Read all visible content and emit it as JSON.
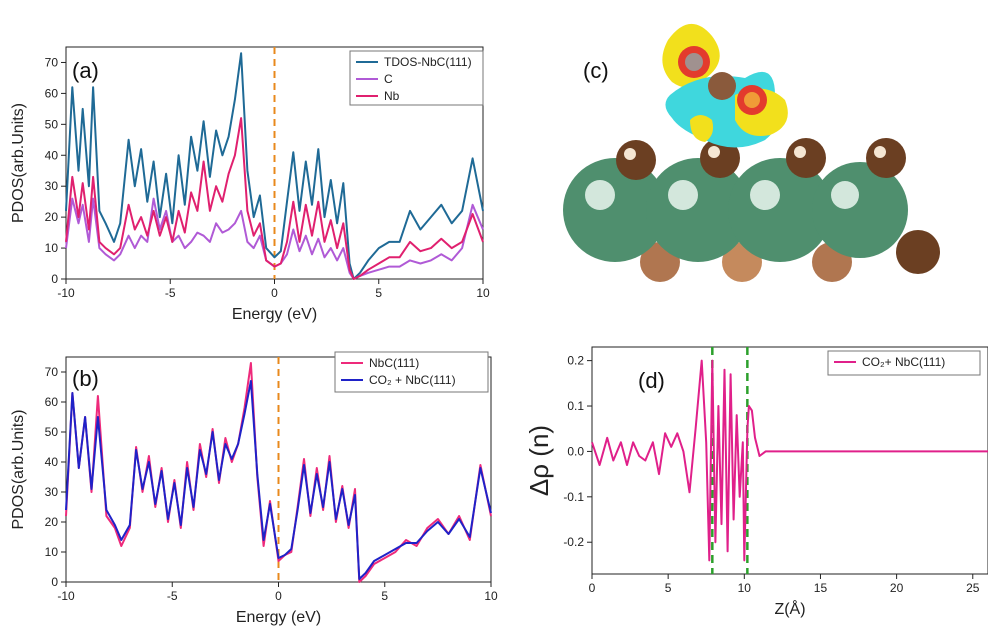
{
  "chart_data": [
    {
      "panel": "(a)",
      "type": "line",
      "xlabel": "Energy (eV)",
      "ylabel": "PDOS(arb.Units)",
      "xlim": [
        -10,
        10
      ],
      "ylim": [
        0,
        75
      ],
      "xticks": [
        -10,
        -5,
        0,
        5,
        10
      ],
      "yticks": [
        0,
        10,
        20,
        30,
        40,
        50,
        60,
        70
      ],
      "fermi_line": {
        "x": 0,
        "color": "#e8891c"
      },
      "legend": "top-right",
      "series": [
        {
          "name": "TDOS-NbC(111)",
          "color": "#1f6a96",
          "x": [
            -10,
            -9.7,
            -9.4,
            -9.2,
            -8.9,
            -8.7,
            -8.4,
            -8.1,
            -7.7,
            -7.4,
            -7.0,
            -6.7,
            -6.4,
            -6.1,
            -5.8,
            -5.5,
            -5.2,
            -4.9,
            -4.6,
            -4.3,
            -4.0,
            -3.7,
            -3.4,
            -3.1,
            -2.8,
            -2.5,
            -2.2,
            -1.9,
            -1.6,
            -1.3,
            -1.0,
            -0.7,
            -0.4,
            0,
            0.3,
            0.6,
            0.9,
            1.2,
            1.5,
            1.8,
            2.1,
            2.4,
            2.7,
            3.0,
            3.3,
            3.6,
            3.8,
            4.1,
            4.5,
            5.0,
            5.5,
            6.0,
            6.5,
            7.0,
            7.5,
            8.0,
            8.5,
            9.0,
            9.5,
            10
          ],
          "y": [
            22,
            62,
            35,
            55,
            30,
            62,
            22,
            18,
            12,
            18,
            45,
            30,
            42,
            25,
            38,
            20,
            34,
            18,
            40,
            24,
            46,
            35,
            51,
            33,
            48,
            40,
            46,
            58,
            73,
            35,
            20,
            27,
            10,
            7,
            9,
            25,
            41,
            22,
            38,
            24,
            42,
            20,
            32,
            18,
            31,
            5,
            0,
            2,
            6,
            10,
            12,
            12,
            22,
            16,
            20,
            24,
            18,
            22,
            39,
            22
          ]
        },
        {
          "name": "C",
          "color": "#b05ad6",
          "x": [
            -10,
            -9.7,
            -9.4,
            -9.2,
            -8.9,
            -8.7,
            -8.4,
            -8.1,
            -7.7,
            -7.4,
            -7.0,
            -6.7,
            -6.4,
            -6.1,
            -5.8,
            -5.5,
            -5.2,
            -4.9,
            -4.6,
            -4.3,
            -4.0,
            -3.7,
            -3.4,
            -3.1,
            -2.8,
            -2.5,
            -2.2,
            -1.9,
            -1.6,
            -1.3,
            -1.0,
            -0.7,
            -0.4,
            0,
            0.3,
            0.6,
            0.9,
            1.2,
            1.5,
            1.8,
            2.1,
            2.4,
            2.7,
            3.0,
            3.3,
            3.6,
            3.8,
            4.1,
            4.5,
            5.0,
            5.5,
            6.0,
            6.5,
            7.0,
            7.5,
            8.0,
            8.5,
            9.0,
            9.5,
            10
          ],
          "y": [
            10,
            26,
            18,
            24,
            12,
            26,
            10,
            8,
            6,
            8,
            14,
            10,
            14,
            12,
            26,
            16,
            22,
            12,
            14,
            10,
            12,
            15,
            14,
            12,
            18,
            15,
            16,
            18,
            22,
            12,
            10,
            14,
            6,
            4,
            5,
            8,
            16,
            9,
            14,
            8,
            13,
            7,
            10,
            6,
            10,
            2,
            0,
            1,
            2,
            3,
            4,
            4,
            6,
            5,
            6,
            8,
            6,
            10,
            24,
            16
          ]
        },
        {
          "name": "Nb",
          "color": "#e0206f",
          "x": [
            -10,
            -9.7,
            -9.4,
            -9.2,
            -8.9,
            -8.7,
            -8.4,
            -8.1,
            -7.7,
            -7.4,
            -7.0,
            -6.7,
            -6.4,
            -6.1,
            -5.8,
            -5.5,
            -5.2,
            -4.9,
            -4.6,
            -4.3,
            -4.0,
            -3.7,
            -3.4,
            -3.1,
            -2.8,
            -2.5,
            -2.2,
            -1.9,
            -1.6,
            -1.3,
            -1.0,
            -0.7,
            -0.4,
            0,
            0.3,
            0.6,
            0.9,
            1.2,
            1.5,
            1.8,
            2.1,
            2.4,
            2.7,
            3.0,
            3.3,
            3.6,
            3.8,
            4.1,
            4.5,
            5.0,
            5.5,
            6.0,
            6.5,
            7.0,
            7.5,
            8.0,
            8.5,
            9.0,
            9.5,
            10
          ],
          "y": [
            12,
            33,
            20,
            31,
            16,
            33,
            12,
            10,
            8,
            10,
            24,
            16,
            20,
            14,
            22,
            14,
            20,
            12,
            22,
            15,
            28,
            22,
            38,
            22,
            30,
            25,
            34,
            40,
            52,
            22,
            14,
            18,
            6,
            4,
            5,
            12,
            25,
            12,
            24,
            14,
            25,
            12,
            19,
            10,
            18,
            3,
            0,
            1,
            3,
            5,
            7,
            7,
            12,
            9,
            10,
            13,
            10,
            12,
            21,
            12
          ]
        }
      ]
    },
    {
      "panel": "(b)",
      "type": "line",
      "xlabel": "Energy (eV)",
      "ylabel": "PDOS(arb.Units)",
      "xlim": [
        -10,
        10
      ],
      "ylim": [
        0,
        75
      ],
      "xticks": [
        -10,
        -5,
        0,
        5,
        10
      ],
      "yticks": [
        0,
        10,
        20,
        30,
        40,
        50,
        60,
        70
      ],
      "fermi_line": {
        "x": 0,
        "color": "#e8891c"
      },
      "legend": "top-right",
      "series": [
        {
          "name": "NbC(111)",
          "color": "#ee2a7b",
          "x": [
            -10,
            -9.7,
            -9.4,
            -9.1,
            -8.8,
            -8.5,
            -8.1,
            -7.7,
            -7.4,
            -7.0,
            -6.7,
            -6.4,
            -6.1,
            -5.8,
            -5.5,
            -5.2,
            -4.9,
            -4.6,
            -4.3,
            -4.0,
            -3.7,
            -3.4,
            -3.1,
            -2.8,
            -2.5,
            -2.2,
            -1.9,
            -1.6,
            -1.3,
            -1.0,
            -0.7,
            -0.4,
            0,
            0.3,
            0.6,
            0.9,
            1.2,
            1.5,
            1.8,
            2.1,
            2.4,
            2.7,
            3.0,
            3.3,
            3.6,
            3.8,
            4.1,
            4.5,
            5.0,
            5.5,
            6.0,
            6.5,
            7.0,
            7.5,
            8.0,
            8.5,
            9.0,
            9.5,
            10
          ],
          "y": [
            22,
            63,
            38,
            55,
            30,
            62,
            22,
            18,
            12,
            18,
            45,
            30,
            42,
            25,
            38,
            20,
            34,
            18,
            40,
            24,
            46,
            35,
            51,
            33,
            48,
            40,
            46,
            58,
            73,
            35,
            12,
            27,
            7,
            9,
            10,
            25,
            41,
            22,
            38,
            24,
            42,
            20,
            32,
            18,
            31,
            0,
            2,
            6,
            8,
            10,
            14,
            12,
            18,
            21,
            16,
            22,
            14,
            39,
            22
          ]
        },
        {
          "name": "CO₂ + NbC(111)",
          "color": "#1f22c8",
          "x": [
            -10,
            -9.7,
            -9.4,
            -9.1,
            -8.8,
            -8.5,
            -8.1,
            -7.7,
            -7.4,
            -7.0,
            -6.7,
            -6.4,
            -6.1,
            -5.8,
            -5.5,
            -5.2,
            -4.9,
            -4.6,
            -4.3,
            -4.0,
            -3.7,
            -3.4,
            -3.1,
            -2.8,
            -2.5,
            -2.2,
            -1.9,
            -1.6,
            -1.3,
            -1.0,
            -0.7,
            -0.4,
            0,
            0.3,
            0.6,
            0.9,
            1.2,
            1.5,
            1.8,
            2.1,
            2.4,
            2.7,
            3.0,
            3.3,
            3.6,
            3.8,
            4.1,
            4.5,
            5.0,
            5.5,
            6.0,
            6.5,
            7.0,
            7.5,
            8.0,
            8.5,
            9.0,
            9.5,
            10
          ],
          "y": [
            24,
            63,
            38,
            55,
            31,
            55,
            24,
            19,
            14,
            19,
            44,
            31,
            40,
            26,
            37,
            21,
            33,
            19,
            38,
            25,
            44,
            36,
            50,
            34,
            46,
            41,
            46,
            56,
            67,
            36,
            14,
            26,
            8,
            9,
            11,
            24,
            39,
            23,
            36,
            25,
            40,
            21,
            31,
            19,
            29,
            1,
            3,
            7,
            9,
            11,
            13,
            13,
            17,
            20,
            16,
            21,
            15,
            38,
            23
          ]
        }
      ]
    },
    {
      "panel": "(d)",
      "type": "line",
      "xlabel": "Z(Å)",
      "ylabel": "Δρ (n)",
      "xlim": [
        0,
        26
      ],
      "ylim": [
        -0.27,
        0.23
      ],
      "xticks": [
        0,
        5,
        10,
        15,
        20,
        25
      ],
      "yticks": [
        -0.2,
        -0.1,
        0.0,
        0.1,
        0.2
      ],
      "vlines": [
        {
          "x": 7.9,
          "color": "#2ca02c"
        },
        {
          "x": 10.2,
          "color": "#2ca02c"
        }
      ],
      "legend": "top-right",
      "series": [
        {
          "name": "CO₂+ NbC(111)",
          "color": "#e0208a",
          "x": [
            0,
            0.5,
            1.0,
            1.4,
            1.9,
            2.3,
            2.7,
            3.1,
            3.5,
            4.0,
            4.4,
            4.8,
            5.2,
            5.6,
            6.0,
            6.4,
            6.8,
            7.2,
            7.5,
            7.7,
            7.9,
            8.1,
            8.3,
            8.5,
            8.7,
            8.9,
            9.1,
            9.3,
            9.5,
            9.7,
            9.9,
            10.0,
            10.1,
            10.2,
            10.3,
            10.5,
            10.7,
            11.0,
            11.4,
            11.8,
            12.5,
            14,
            16,
            18,
            20,
            22,
            24,
            26
          ],
          "y": [
            0.02,
            -0.03,
            0.03,
            -0.02,
            0.02,
            -0.03,
            0.02,
            -0.01,
            -0.02,
            0.02,
            -0.05,
            0.04,
            0.01,
            0.04,
            0.0,
            -0.09,
            0.05,
            0.2,
            0.02,
            -0.24,
            0.2,
            -0.2,
            0.1,
            -0.16,
            0.18,
            -0.22,
            0.17,
            -0.15,
            0.08,
            -0.1,
            0.02,
            -0.24,
            -0.1,
            0.05,
            0.1,
            0.09,
            0.03,
            -0.01,
            0.0,
            0.0,
            0.0,
            0.0,
            0.0,
            0.0,
            0.0,
            0.0,
            0.0,
            0.0
          ]
        }
      ]
    }
  ],
  "panel_c": {
    "label": "(c)"
  }
}
